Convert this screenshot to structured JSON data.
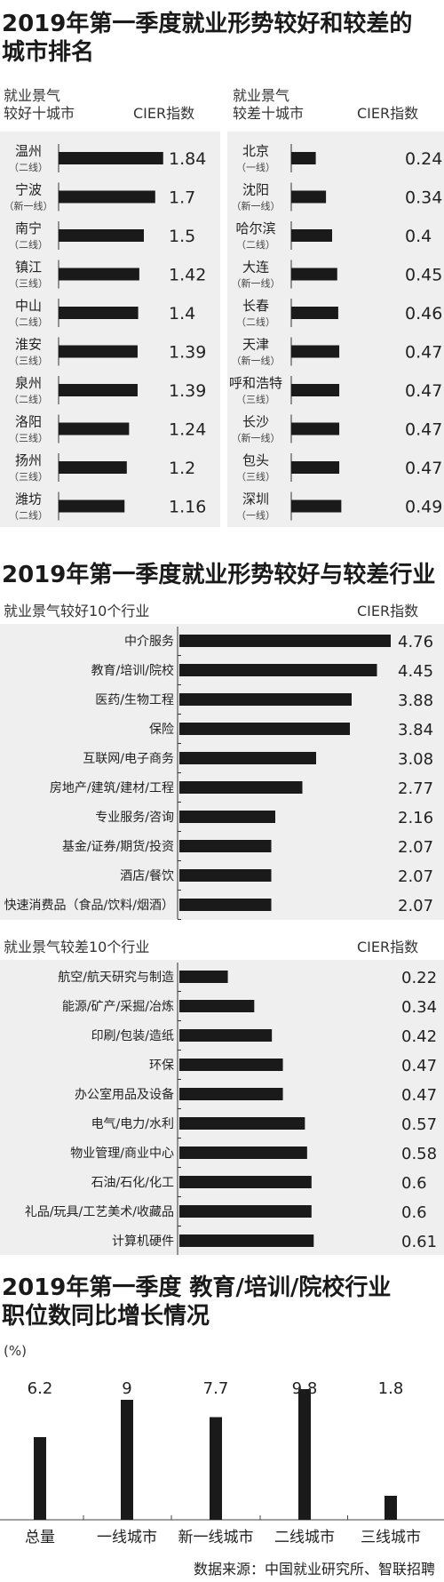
{
  "section1": {
    "title_line1": "2019年第一季度就业形势较好和较差的",
    "title_line2": "城市排名",
    "good_header_line1": "就业景气",
    "good_header_line2": "较好十城市",
    "good_index_header": "CIER指数",
    "bad_header_line1": "就业景气",
    "bad_header_line2": "较差十城市",
    "bad_index_header": "CIER指数"
  },
  "section2": {
    "title": "2019年第一季度就业形势较好与较差行业",
    "good_header": "就业景气较好10个行业",
    "good_index_header": "CIER指数",
    "bad_header": "就业景气较差10个行业",
    "bad_index_header": "CIER指数"
  },
  "section3": {
    "title_line1": "2019年第一季度 教育/培训/院校行业",
    "title_line2": "职位数同比增长情况",
    "unit": "(%)"
  },
  "source": "数据来源：中国就业研究所、智联招聘",
  "colors": {
    "bar": "#1a1a1a",
    "panel": "#efefef",
    "text": "#222222"
  },
  "chart_data": [
    {
      "type": "bar",
      "orientation": "horizontal",
      "title": "就业景气较好十城市",
      "value_label": "CIER指数",
      "categories": [
        "温州",
        "宁波",
        "南宁",
        "镇江",
        "中山",
        "淮安",
        "泉州",
        "洛阳",
        "扬州",
        "潍坊"
      ],
      "tiers": [
        "（二线）",
        "（新一线）",
        "（二线）",
        "（三线）",
        "（二线）",
        "（三线）",
        "（二线）",
        "（三线）",
        "（三线）",
        "（二线）"
      ],
      "values": [
        1.84,
        1.7,
        1.5,
        1.42,
        1.4,
        1.39,
        1.39,
        1.24,
        1.2,
        1.16
      ],
      "value_labels": [
        "1.84",
        "1.7",
        "1.5",
        "1.42",
        "1.4",
        "1.39",
        "1.39",
        "1.24",
        "1.2",
        "1.16"
      ]
    },
    {
      "type": "bar",
      "orientation": "horizontal",
      "title": "就业景气较差十城市",
      "value_label": "CIER指数",
      "categories": [
        "北京",
        "沈阳",
        "哈尔滨",
        "大连",
        "长春",
        "天津",
        "呼和浩特",
        "长沙",
        "包头",
        "深圳"
      ],
      "tiers": [
        "（一线）",
        "（新一线）",
        "（二线）",
        "（新一线）",
        "（二线）",
        "（新一线）",
        "（三线）",
        "（新一线）",
        "（三线）",
        "（一线）"
      ],
      "values": [
        0.24,
        0.34,
        0.4,
        0.45,
        0.46,
        0.47,
        0.47,
        0.47,
        0.47,
        0.49
      ],
      "value_labels": [
        "0.24",
        "0.34",
        "0.4",
        "0.45",
        "0.46",
        "0.47",
        "0.47",
        "0.47",
        "0.47",
        "0.49"
      ]
    },
    {
      "type": "bar",
      "orientation": "horizontal",
      "title": "就业景气较好10个行业",
      "value_label": "CIER指数",
      "categories": [
        "中介服务",
        "教育/培训/院校",
        "医药/生物工程",
        "保险",
        "互联网/电子商务",
        "房地产/建筑/建材/工程",
        "专业服务/咨询",
        "基金/证券/期货/投资",
        "酒店/餐饮",
        "快速消费品（食品/饮料/烟酒）"
      ],
      "values": [
        4.76,
        4.45,
        3.88,
        3.84,
        3.08,
        2.77,
        2.16,
        2.07,
        2.07,
        2.07
      ],
      "value_labels": [
        "4.76",
        "4.45",
        "3.88",
        "3.84",
        "3.08",
        "2.77",
        "2.16",
        "2.07",
        "2.07",
        "2.07"
      ]
    },
    {
      "type": "bar",
      "orientation": "horizontal",
      "title": "就业景气较差10个行业",
      "value_label": "CIER指数",
      "categories": [
        "航空/航天研究与制造",
        "能源/矿产/采掘/冶炼",
        "印刷/包装/造纸",
        "环保",
        "办公室用品及设备",
        "电气/电力/水利",
        "物业管理/商业中心",
        "石油/石化/化工",
        "礼品/玩具/工艺美术/收藏品",
        "计算机硬件"
      ],
      "values": [
        0.22,
        0.34,
        0.42,
        0.47,
        0.47,
        0.57,
        0.58,
        0.6,
        0.6,
        0.61
      ],
      "value_labels": [
        "0.22",
        "0.34",
        "0.42",
        "0.47",
        "0.47",
        "0.57",
        "0.58",
        "0.6",
        "0.6",
        "0.61"
      ]
    },
    {
      "type": "bar",
      "orientation": "vertical",
      "title": "2019年第一季度 教育/培训/院校行业 职位数同比增长情况",
      "ylabel": "(%)",
      "categories": [
        "总量",
        "一线城市",
        "新一线城市",
        "二线城市",
        "三线城市"
      ],
      "values": [
        6.2,
        9,
        7.7,
        9.8,
        1.8
      ],
      "value_labels": [
        "6.2",
        "9",
        "7.7",
        "9.8",
        "1.8"
      ]
    }
  ]
}
